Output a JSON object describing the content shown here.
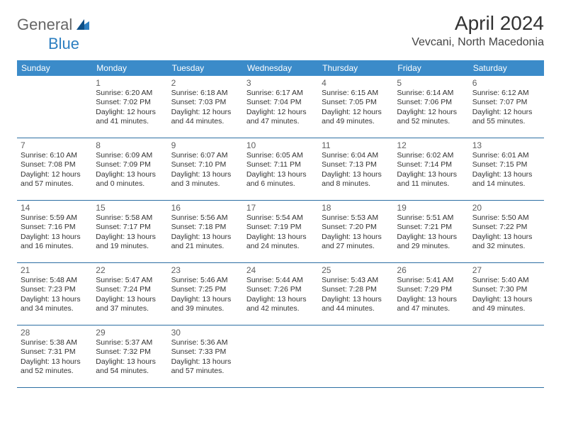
{
  "logo": {
    "text_a": "General",
    "text_b": "Blue"
  },
  "header": {
    "month": "April 2024",
    "location": "Vevcani, North Macedonia"
  },
  "theme": {
    "header_bg": "#3b8bc9",
    "header_fg": "#ffffff",
    "row_divider": "#2d6fa3",
    "background": "#ffffff",
    "text_color": "#333333",
    "daynum_color": "#606060",
    "month_fontsize": 28,
    "location_fontsize": 16,
    "weekday_fontsize": 12,
    "cell_fontsize": 10.5
  },
  "weekdays": [
    "Sunday",
    "Monday",
    "Tuesday",
    "Wednesday",
    "Thursday",
    "Friday",
    "Saturday"
  ],
  "weeks": [
    [
      null,
      {
        "n": "1",
        "sr": "6:20 AM",
        "ss": "7:02 PM",
        "dl": "12 hours and 41 minutes."
      },
      {
        "n": "2",
        "sr": "6:18 AM",
        "ss": "7:03 PM",
        "dl": "12 hours and 44 minutes."
      },
      {
        "n": "3",
        "sr": "6:17 AM",
        "ss": "7:04 PM",
        "dl": "12 hours and 47 minutes."
      },
      {
        "n": "4",
        "sr": "6:15 AM",
        "ss": "7:05 PM",
        "dl": "12 hours and 49 minutes."
      },
      {
        "n": "5",
        "sr": "6:14 AM",
        "ss": "7:06 PM",
        "dl": "12 hours and 52 minutes."
      },
      {
        "n": "6",
        "sr": "6:12 AM",
        "ss": "7:07 PM",
        "dl": "12 hours and 55 minutes."
      }
    ],
    [
      {
        "n": "7",
        "sr": "6:10 AM",
        "ss": "7:08 PM",
        "dl": "12 hours and 57 minutes."
      },
      {
        "n": "8",
        "sr": "6:09 AM",
        "ss": "7:09 PM",
        "dl": "13 hours and 0 minutes."
      },
      {
        "n": "9",
        "sr": "6:07 AM",
        "ss": "7:10 PM",
        "dl": "13 hours and 3 minutes."
      },
      {
        "n": "10",
        "sr": "6:05 AM",
        "ss": "7:11 PM",
        "dl": "13 hours and 6 minutes."
      },
      {
        "n": "11",
        "sr": "6:04 AM",
        "ss": "7:13 PM",
        "dl": "13 hours and 8 minutes."
      },
      {
        "n": "12",
        "sr": "6:02 AM",
        "ss": "7:14 PM",
        "dl": "13 hours and 11 minutes."
      },
      {
        "n": "13",
        "sr": "6:01 AM",
        "ss": "7:15 PM",
        "dl": "13 hours and 14 minutes."
      }
    ],
    [
      {
        "n": "14",
        "sr": "5:59 AM",
        "ss": "7:16 PM",
        "dl": "13 hours and 16 minutes."
      },
      {
        "n": "15",
        "sr": "5:58 AM",
        "ss": "7:17 PM",
        "dl": "13 hours and 19 minutes."
      },
      {
        "n": "16",
        "sr": "5:56 AM",
        "ss": "7:18 PM",
        "dl": "13 hours and 21 minutes."
      },
      {
        "n": "17",
        "sr": "5:54 AM",
        "ss": "7:19 PM",
        "dl": "13 hours and 24 minutes."
      },
      {
        "n": "18",
        "sr": "5:53 AM",
        "ss": "7:20 PM",
        "dl": "13 hours and 27 minutes."
      },
      {
        "n": "19",
        "sr": "5:51 AM",
        "ss": "7:21 PM",
        "dl": "13 hours and 29 minutes."
      },
      {
        "n": "20",
        "sr": "5:50 AM",
        "ss": "7:22 PM",
        "dl": "13 hours and 32 minutes."
      }
    ],
    [
      {
        "n": "21",
        "sr": "5:48 AM",
        "ss": "7:23 PM",
        "dl": "13 hours and 34 minutes."
      },
      {
        "n": "22",
        "sr": "5:47 AM",
        "ss": "7:24 PM",
        "dl": "13 hours and 37 minutes."
      },
      {
        "n": "23",
        "sr": "5:46 AM",
        "ss": "7:25 PM",
        "dl": "13 hours and 39 minutes."
      },
      {
        "n": "24",
        "sr": "5:44 AM",
        "ss": "7:26 PM",
        "dl": "13 hours and 42 minutes."
      },
      {
        "n": "25",
        "sr": "5:43 AM",
        "ss": "7:28 PM",
        "dl": "13 hours and 44 minutes."
      },
      {
        "n": "26",
        "sr": "5:41 AM",
        "ss": "7:29 PM",
        "dl": "13 hours and 47 minutes."
      },
      {
        "n": "27",
        "sr": "5:40 AM",
        "ss": "7:30 PM",
        "dl": "13 hours and 49 minutes."
      }
    ],
    [
      {
        "n": "28",
        "sr": "5:38 AM",
        "ss": "7:31 PM",
        "dl": "13 hours and 52 minutes."
      },
      {
        "n": "29",
        "sr": "5:37 AM",
        "ss": "7:32 PM",
        "dl": "13 hours and 54 minutes."
      },
      {
        "n": "30",
        "sr": "5:36 AM",
        "ss": "7:33 PM",
        "dl": "13 hours and 57 minutes."
      },
      null,
      null,
      null,
      null
    ]
  ],
  "labels": {
    "sunrise": "Sunrise:",
    "sunset": "Sunset:",
    "daylight": "Daylight:"
  }
}
